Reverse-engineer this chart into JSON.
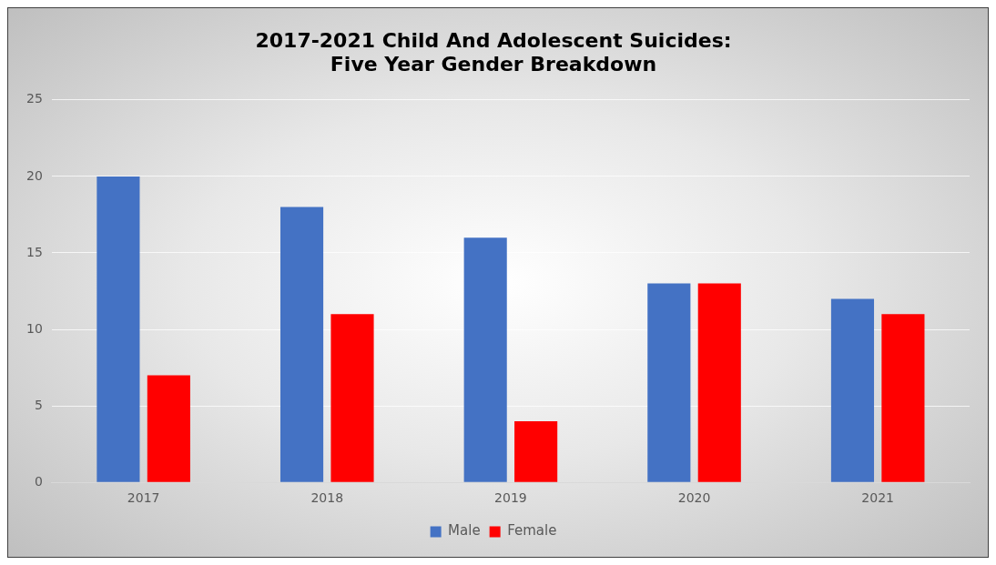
{
  "chart_data": {
    "type": "bar",
    "title": "2017-2021 Child And Adolescent Suicides:\nFive Year Gender Breakdown",
    "categories": [
      "2017",
      "2018",
      "2019",
      "2020",
      "2021"
    ],
    "series": [
      {
        "name": "Male",
        "color": "#4472c4",
        "values": [
          20,
          18,
          16,
          13,
          12
        ]
      },
      {
        "name": "Female",
        "color": "#ff0000",
        "values": [
          7,
          11,
          4,
          13,
          11
        ]
      }
    ],
    "ylim": [
      0,
      25
    ],
    "yticks": [
      0,
      5,
      10,
      15,
      20,
      25
    ],
    "grid": "y",
    "legend": "bottom"
  }
}
